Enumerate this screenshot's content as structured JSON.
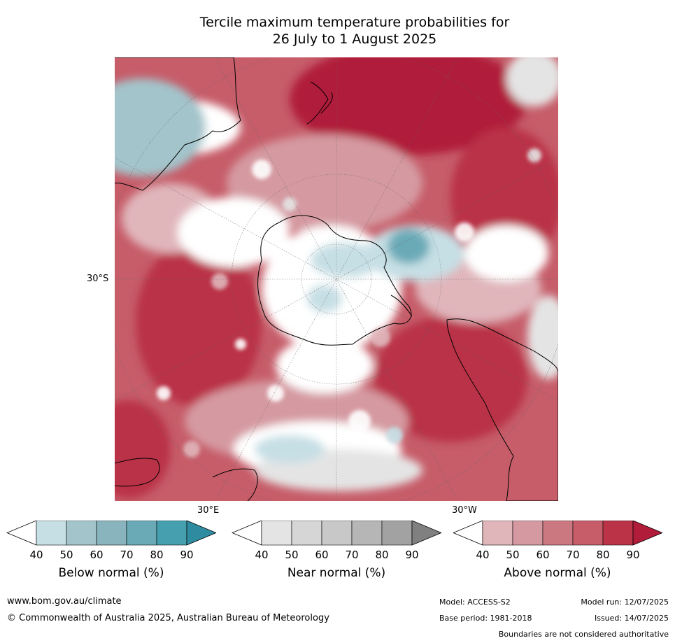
{
  "title": {
    "line1": "Tercile maximum temperature probabilities for",
    "line2": "26 July to 1 August 2025"
  },
  "map": {
    "lat_label": "30°S",
    "lon_label_east": "30°E",
    "lon_label_west": "30°W"
  },
  "colorbars": [
    {
      "label": "Below normal (%)",
      "ticks": [
        "40",
        "50",
        "60",
        "70",
        "80",
        "90"
      ],
      "colors": [
        "#c6dfe5",
        "#a3c4cb",
        "#89b4bd",
        "#6aaab7",
        "#459fae",
        "#2e8ba0"
      ]
    },
    {
      "label": "Near normal (%)",
      "ticks": [
        "40",
        "50",
        "60",
        "70",
        "80",
        "90"
      ],
      "colors": [
        "#e4e4e4",
        "#d6d6d6",
        "#c8c8c8",
        "#b6b6b6",
        "#a2a2a2",
        "#808080"
      ]
    },
    {
      "label": "Above normal (%)",
      "ticks": [
        "40",
        "50",
        "60",
        "70",
        "80",
        "90"
      ],
      "colors": [
        "#e0b6bb",
        "#d59aa1",
        "#cc7880",
        "#c65d69",
        "#ba3347",
        "#b01c3a"
      ]
    }
  ],
  "footer": {
    "website": "www.bom.gov.au/climate",
    "copyright": "© Commonwealth of Australia 2025, Australian Bureau of Meteorology",
    "model": "Model: ACCESS-S2",
    "base_period": "Base period: 1981-2018",
    "model_run": "Model run: 12/07/2025",
    "issued": "Issued: 14/07/2025",
    "disclaimer": "Boundaries are not considered authoritative"
  }
}
